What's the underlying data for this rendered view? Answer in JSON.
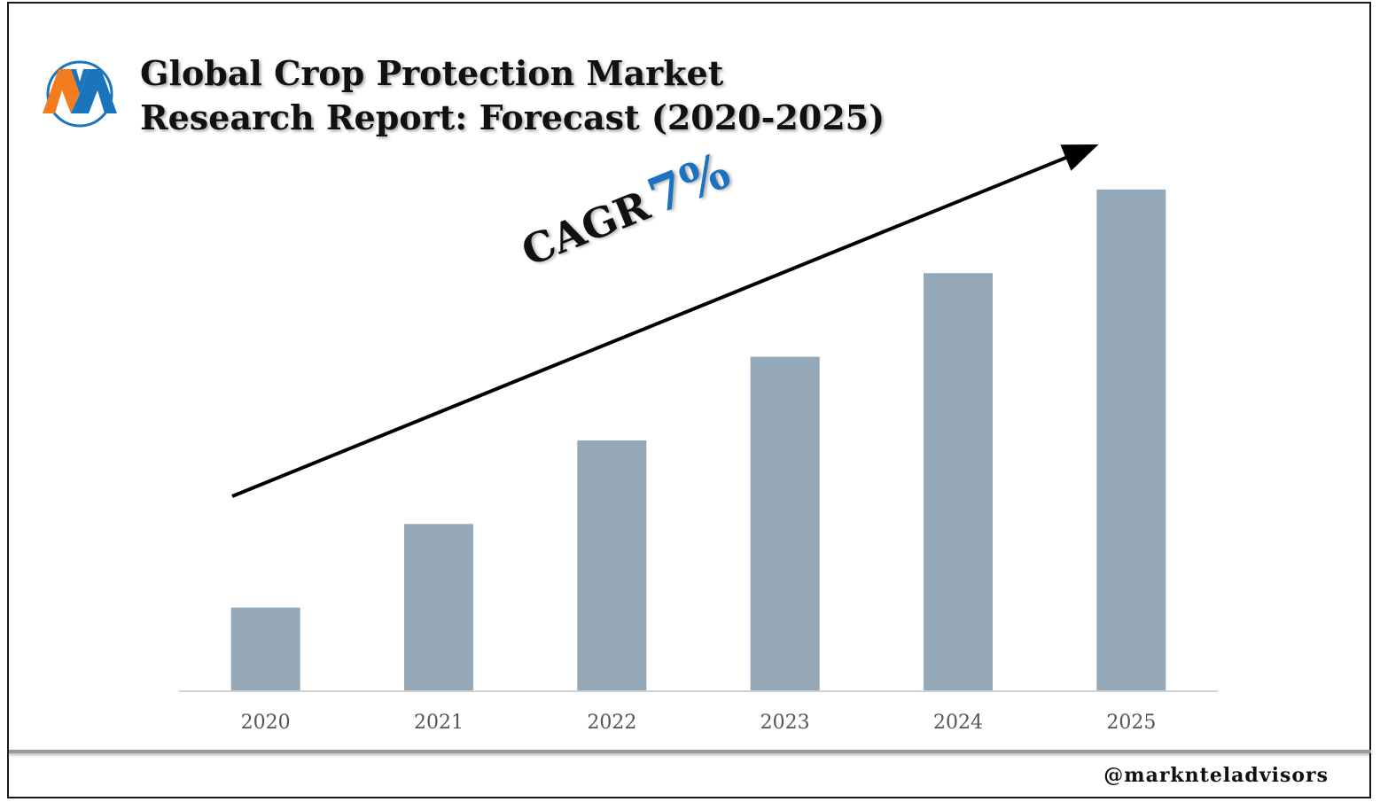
{
  "title": {
    "line1": "Global Crop Protection Market",
    "line2": "Research Report: Forecast (2020-2025)"
  },
  "cagr": {
    "label": "CAGR",
    "value": "7%"
  },
  "watermark": "@marknteladvisors",
  "logo": {
    "icon": "markntel-logo-icon",
    "colors": {
      "orange": "#f47b20",
      "blue": "#1b75bc"
    }
  },
  "colors": {
    "bar": "#94a8b8",
    "axis": "#d0d0d0",
    "arrow": "#000000",
    "cagr_value": "#1a72c0"
  },
  "chart_data": {
    "type": "bar",
    "categories": [
      "2020",
      "2021",
      "2022",
      "2023",
      "2024",
      "2025"
    ],
    "values": [
      1,
      2,
      3,
      4,
      5,
      6
    ],
    "title": "Global Crop Protection Market Research Report: Forecast (2020-2025)",
    "xlabel": "",
    "ylabel": "",
    "ylim": [
      0,
      6.2
    ],
    "grid": false,
    "annotations": [
      "CAGR 7%"
    ]
  }
}
